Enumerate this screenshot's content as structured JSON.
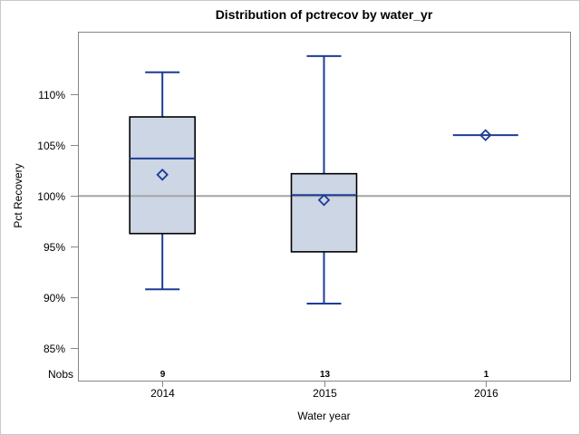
{
  "title": "Distribution of pctrecov by water_yr",
  "y_axis": {
    "label": "Pct Recovery"
  },
  "x_axis": {
    "label": "Water year"
  },
  "nobs_row": {
    "label": "Nobs"
  },
  "colors": {
    "box_fill": "#ccd6e4",
    "box_outline": "#000000",
    "line_blue": "#1d3c96",
    "reference_line_gray": "#a6a6a6",
    "axis_border_gray": "#868686",
    "canvas_border_gray": "#c9c9c9",
    "text": "#000000"
  },
  "chart_data": {
    "type": "boxplot",
    "title": "Distribution of pctrecov by water_yr",
    "xlabel": "Water year",
    "ylabel": "Pct Recovery",
    "categories": [
      "2014",
      "2015",
      "2016"
    ],
    "ytick_values": [
      110,
      105,
      100,
      95,
      90,
      85
    ],
    "ytick_labels": [
      "110%",
      "105%",
      "100%",
      "95%",
      "90%",
      "85%"
    ],
    "ylim": [
      81.8,
      116.2
    ],
    "reference_line": 100,
    "grid": false,
    "legend": "none",
    "mean_marker": "open-diamond",
    "series": [
      {
        "category": "2014",
        "nobs": 9,
        "low": 90.8,
        "q1": 96.3,
        "median": 103.7,
        "mean": 102.1,
        "q3": 107.8,
        "high": 112.2
      },
      {
        "category": "2015",
        "nobs": 13,
        "low": 89.4,
        "q1": 94.5,
        "median": 100.1,
        "mean": 99.6,
        "q3": 102.2,
        "high": 113.8
      },
      {
        "category": "2016",
        "nobs": 1,
        "low": 106,
        "q1": 106,
        "median": 106,
        "mean": 106,
        "q3": 106,
        "high": 106
      }
    ]
  }
}
